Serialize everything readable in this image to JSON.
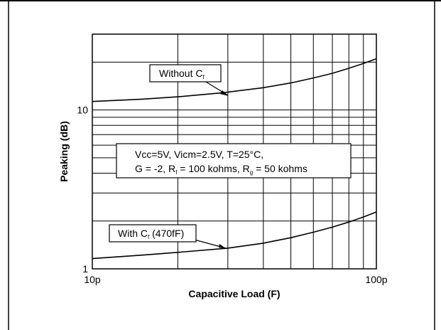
{
  "chart_data": {
    "type": "line",
    "xscale": "log",
    "yscale": "log",
    "xlim": [
      10,
      100
    ],
    "ylim": [
      1,
      30
    ],
    "xlabel": "Capacitive Load (F)",
    "ylabel": "Peaking (dB)",
    "x_tick_labels": [
      {
        "x": 10,
        "label": "10p"
      },
      {
        "x": 100,
        "label": "100p"
      }
    ],
    "y_tick_labels": [
      {
        "y": 1,
        "label": "1"
      },
      {
        "y": 10,
        "label": "10"
      }
    ],
    "grid": true,
    "conditions_box": {
      "line1": "Vcc=5V, Vicm=2.5V, T=25°C,",
      "line2_prefix": "G = -2, R",
      "line2_sub1": "f",
      "line2_mid": " = 100 kohms, R",
      "line2_sub2": "g",
      "line2_suffix": " = 50 kohms"
    },
    "series": [
      {
        "label_main": "Without C",
        "label_sub": "f",
        "label_suffix": "",
        "x": [
          10,
          15,
          20,
          28.5,
          40,
          50,
          60,
          70,
          80,
          90,
          100
        ],
        "y": [
          11.3,
          11.7,
          12.1,
          12.8,
          13.8,
          14.8,
          15.9,
          17.0,
          18.3,
          19.6,
          21.0
        ]
      },
      {
        "label_main": "With C",
        "label_sub": "f",
        "label_suffix": " (470fF)",
        "x": [
          10,
          15,
          20,
          30,
          40,
          50,
          60,
          70,
          80,
          90,
          100
        ],
        "y": [
          1.16,
          1.22,
          1.27,
          1.35,
          1.45,
          1.57,
          1.7,
          1.83,
          1.97,
          2.12,
          2.28
        ]
      }
    ]
  }
}
